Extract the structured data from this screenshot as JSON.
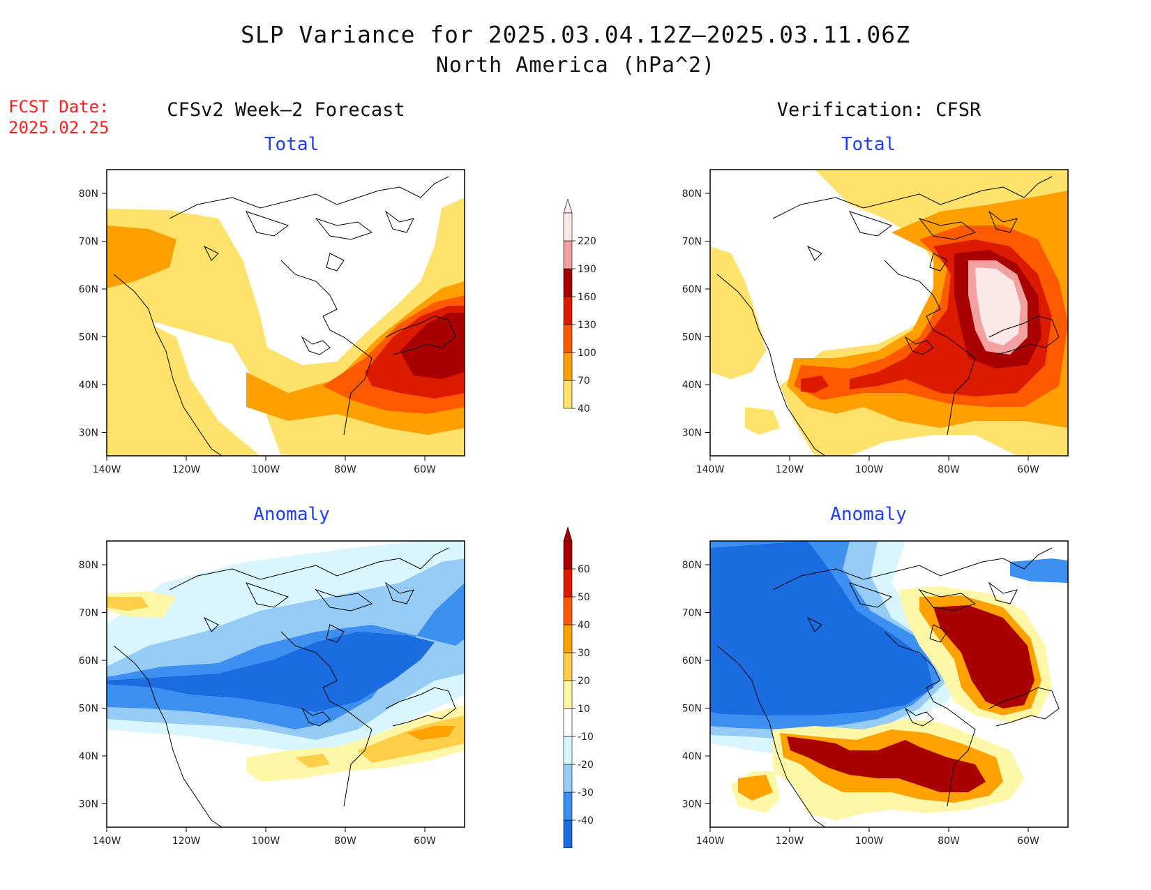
{
  "title": "SLP Variance for 2025.03.04.12Z–2025.03.11.06Z",
  "subtitle": "North America (hPa^2)",
  "fcst_label": "FCST Date:",
  "fcst_date": "2025.02.25",
  "columns": {
    "left": "CFSv2 Week–2 Forecast",
    "right": "Verification: CFSR"
  },
  "panels": {
    "total": "Total",
    "anomaly": "Anomaly"
  },
  "axes": {
    "lat_ticks": [
      "80N",
      "70N",
      "60N",
      "50N",
      "40N",
      "30N"
    ],
    "lon_ticks": [
      "140W",
      "120W",
      "100W",
      "80W",
      "60W"
    ]
  },
  "colorbar_total": {
    "levels": [
      "40",
      "70",
      "100",
      "130",
      "160",
      "190",
      "220"
    ],
    "colors": [
      "#ffe26b",
      "#ffa000",
      "#ff5a00",
      "#dc1a00",
      "#a80000",
      "#f2a0a0",
      "#fce8e8"
    ]
  },
  "colorbar_anomaly": {
    "levels": [
      "-40",
      "-30",
      "-20",
      "-10",
      "10",
      "20",
      "30",
      "40",
      "50",
      "60"
    ],
    "colors": [
      "#1a6ce0",
      "#3d8ff0",
      "#96cbf5",
      "#d9f6ff",
      "#ffffff",
      "#fff7a8",
      "#ffcf4a",
      "#ffa200",
      "#ff5a00",
      "#dc1a00",
      "#a80000"
    ]
  }
}
